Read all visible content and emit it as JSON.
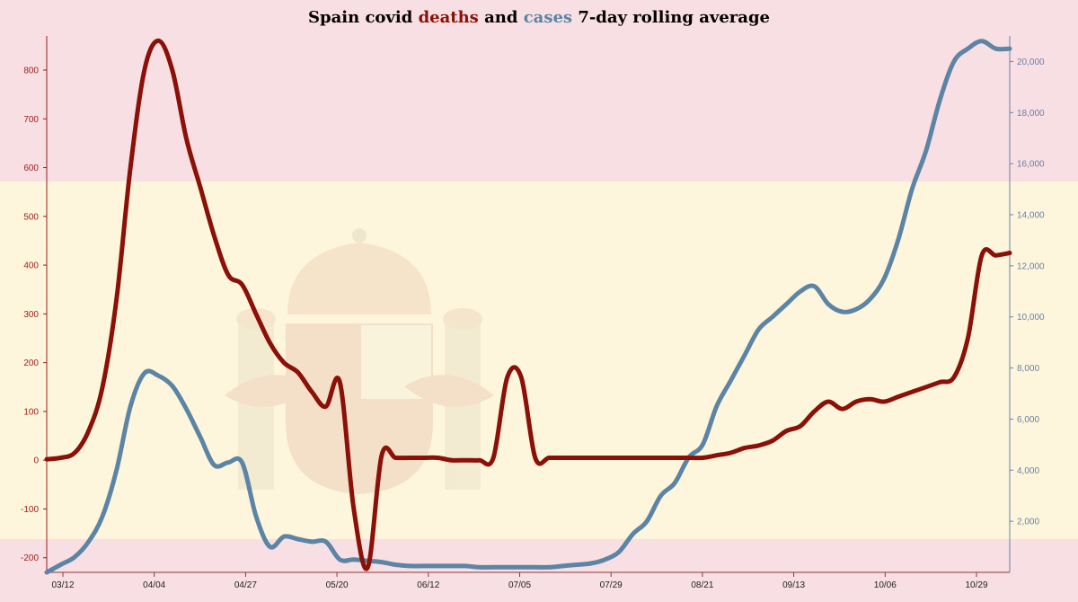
{
  "title": {
    "part1": "Spain covid ",
    "deaths_word": "deaths",
    "part2": " and ",
    "cases_word": "cases",
    "part3": " 7-day rolling average"
  },
  "colors": {
    "deaths": "#8b1007",
    "cases": "#5b84a5",
    "flag_red": "#f7dfe3",
    "flag_yellow": "#fdf6dc",
    "left_axis": "#9b1c1c",
    "right_axis": "#6a7fa8",
    "bottom_axis": "#8b3a3a"
  },
  "chart_data": {
    "type": "line",
    "x": [
      "03/06",
      "03/08",
      "03/11",
      "03/14",
      "03/17",
      "03/20",
      "03/23",
      "03/26",
      "03/29",
      "04/01",
      "04/04",
      "04/07",
      "04/10",
      "04/13",
      "04/16",
      "04/19",
      "04/22",
      "04/25",
      "04/28",
      "05/01",
      "05/04",
      "05/07",
      "05/10",
      "05/13",
      "05/16",
      "05/19",
      "05/22",
      "05/24",
      "05/26",
      "05/28",
      "05/30",
      "06/01",
      "06/04",
      "06/07",
      "06/10",
      "06/13",
      "06/16",
      "06/18",
      "06/20",
      "06/23",
      "06/26",
      "06/29",
      "07/02",
      "07/05",
      "07/10",
      "07/15",
      "07/20",
      "07/25",
      "07/30",
      "08/04",
      "08/09",
      "08/14",
      "08/19",
      "08/24",
      "08/29",
      "09/03",
      "09/08",
      "09/13",
      "09/18",
      "09/23",
      "09/28",
      "10/03",
      "10/08",
      "10/13",
      "10/18",
      "10/23",
      "10/28",
      "11/01",
      "11/03",
      "11/04"
    ],
    "x_ticks": [
      "03/12",
      "04/04",
      "04/27",
      "05/20",
      "06/12",
      "07/05",
      "07/29",
      "08/21",
      "09/13",
      "10/06",
      "10/29"
    ],
    "y_left_ticks": [
      -200,
      -100,
      0,
      100,
      200,
      300,
      400,
      500,
      600,
      700,
      800
    ],
    "y_right_ticks": [
      2000,
      4000,
      6000,
      8000,
      10000,
      12000,
      14000,
      16000,
      18000,
      20000
    ],
    "y_left_range": [
      -230,
      870
    ],
    "y_right_range": [
      0,
      21000
    ],
    "series": [
      {
        "name": "deaths",
        "axis": "left",
        "values": [
          2,
          5,
          15,
          60,
          150,
          330,
          600,
          800,
          860,
          800,
          660,
          560,
          460,
          380,
          360,
          300,
          240,
          200,
          180,
          140,
          110,
          160,
          -100,
          -220,
          10,
          5,
          5,
          5,
          5,
          0,
          0,
          0,
          5,
          170,
          170,
          5,
          5,
          5,
          5,
          5,
          5,
          5,
          5,
          5,
          5,
          5,
          5,
          5,
          10,
          15,
          25,
          30,
          40,
          60,
          70,
          100,
          120,
          105,
          120,
          125,
          120,
          130,
          140,
          150,
          160,
          170,
          250,
          420,
          420,
          425
        ]
      },
      {
        "name": "cases",
        "axis": "right",
        "values": [
          0,
          300,
          600,
          1200,
          2200,
          4000,
          6500,
          7800,
          7700,
          7300,
          6400,
          5300,
          4200,
          4300,
          4300,
          2200,
          1000,
          1400,
          1300,
          1200,
          1200,
          500,
          500,
          450,
          400,
          300,
          250,
          250,
          250,
          250,
          250,
          200,
          200,
          200,
          200,
          200,
          200,
          250,
          300,
          350,
          500,
          800,
          1500,
          2000,
          3000,
          3500,
          4500,
          5000,
          6500,
          7500,
          8500,
          9500,
          10000,
          10500,
          11000,
          11200,
          10500,
          10200,
          10300,
          10700,
          11500,
          13000,
          15000,
          16500,
          18500,
          20000,
          20500,
          20800,
          20500,
          20500
        ]
      }
    ]
  }
}
